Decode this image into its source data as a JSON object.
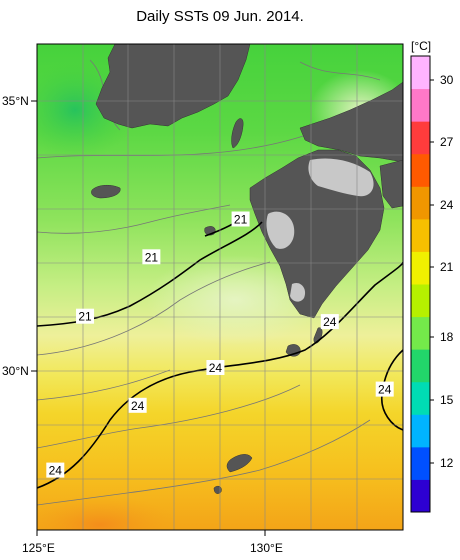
{
  "title": "Daily SSTs 09 Jun. 2014.",
  "colorbar": {
    "unit": "[°C]",
    "ticks": [
      "30",
      "27",
      "24",
      "21",
      "18",
      "15",
      "12"
    ],
    "colors": [
      "#2d00d2",
      "#0050ff",
      "#00b4ff",
      "#00dcb4",
      "#22d66a",
      "#74ea4a",
      "#b6f000",
      "#f0f000",
      "#f7c000",
      "#f09600",
      "#ff5a00",
      "#ff3c3c",
      "#ff78c8",
      "#ffb4ff"
    ]
  },
  "axes": {
    "lat_labels": [
      "35°N",
      "30°N"
    ],
    "lon_labels": [
      "125°E",
      "130°E"
    ]
  },
  "contour_labels": [
    {
      "text": "21",
      "lon": 129.45,
      "lat": 32.75
    },
    {
      "text": "21",
      "lon": 127.5,
      "lat": 32.05
    },
    {
      "text": "21",
      "lon": 126.05,
      "lat": 30.95
    },
    {
      "text": "24",
      "lon": 128.9,
      "lat": 30.0
    },
    {
      "text": "24",
      "lon": 127.2,
      "lat": 29.3
    },
    {
      "text": "24",
      "lon": 125.4,
      "lat": 28.1
    },
    {
      "text": "24",
      "lon": 131.4,
      "lat": 30.85
    },
    {
      "text": "24",
      "lon": 132.6,
      "lat": 29.6
    }
  ],
  "map_extent": {
    "lon_min": 125,
    "lon_max": 133,
    "lat_min": 27,
    "lat_max": 36
  }
}
